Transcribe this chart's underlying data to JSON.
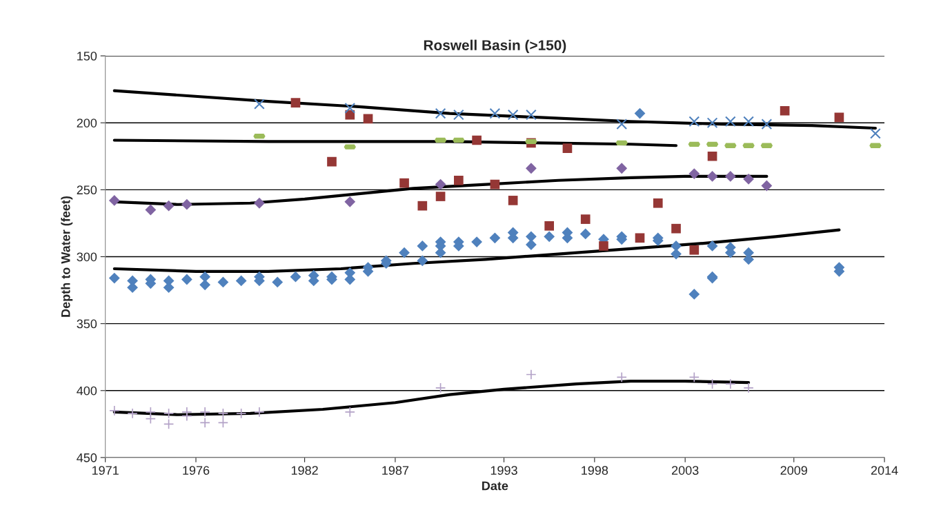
{
  "chart_data": {
    "type": "scatter",
    "title": "Roswell Basin (>150)",
    "xlabel": "Date",
    "ylabel": "Depth to Water (feet)",
    "xlim": [
      1971,
      2014
    ],
    "xticks": [
      1971,
      1976,
      1982,
      1987,
      1993,
      1998,
      2003,
      2009,
      2014
    ],
    "ylim": [
      450,
      150
    ],
    "yticks": [
      150,
      200,
      250,
      300,
      350,
      400,
      450
    ],
    "grid": "y",
    "legend": false,
    "series": [
      {
        "marker": "diamond",
        "color": "#4f81bd",
        "x": [
          1971.5,
          1972.5,
          1972.5,
          1973.5,
          1973.5,
          1974.5,
          1974.5,
          1975.5,
          1976.5,
          1976.5,
          1977.5,
          1978.5,
          1979.5,
          1979.5,
          1980.5,
          1981.5,
          1982.5,
          1982.5,
          1983.5,
          1983.5,
          1984.5,
          1984.5,
          1985.5,
          1985.5,
          1986.5,
          1986.5,
          1987.5,
          1988.5,
          1988.5,
          1989.5,
          1989.5,
          1989.5,
          1990.5,
          1990.5,
          1991.5,
          1992.5,
          1993.5,
          1993.5,
          1994.5,
          1994.5,
          1995.5,
          1996.5,
          1996.5,
          1997.5,
          1998.5,
          1999.5,
          1999.5,
          2000.5,
          2001.5,
          2001.5,
          2002.5,
          2002.5,
          2003.5,
          2004.5,
          2004.5,
          2004.5,
          2005.5,
          2005.5,
          2006.5,
          2006.5,
          2011.5,
          2011.5
        ],
        "values": [
          316,
          318,
          323,
          317,
          320,
          318,
          323,
          317,
          315,
          321,
          319,
          318,
          315,
          318,
          319,
          315,
          314,
          318,
          315,
          317,
          312,
          317,
          308,
          311,
          303,
          305,
          297,
          292,
          303,
          289,
          292,
          297,
          289,
          292,
          289,
          286,
          282,
          286,
          285,
          291,
          285,
          282,
          286,
          283,
          287,
          285,
          287,
          193,
          286,
          288,
          292,
          298,
          328,
          292,
          315,
          316,
          293,
          297,
          297,
          302,
          308,
          311
        ]
      },
      {
        "marker": "square",
        "color": "#953735",
        "x": [
          1981.5,
          1983.5,
          1984.5,
          1985.5,
          1987.5,
          1988.5,
          1989.5,
          1990.5,
          1991.5,
          1992.5,
          1993.5,
          1994.5,
          1995.5,
          1996.5,
          1997.5,
          1998.5,
          2000.5,
          2001.5,
          2002.5,
          2003.5,
          2004.5,
          2008.5,
          2011.5
        ],
        "values": [
          185,
          229,
          194,
          197,
          245,
          262,
          255,
          243,
          213,
          246,
          258,
          215,
          277,
          219,
          272,
          292,
          286,
          260,
          279,
          295,
          225,
          191,
          196
        ]
      },
      {
        "color": "#9bbb59",
        "x": [
          1979.5,
          1984.5,
          1989.5,
          1990.5,
          1994.5,
          1999.5,
          2003.5,
          2004.5,
          2005.5,
          2006.5,
          2007.5,
          2013.5
        ],
        "values": [
          210,
          218,
          213,
          213,
          214,
          215,
          216,
          216,
          217,
          217,
          217,
          217
        ]
      },
      {
        "marker": "diamond",
        "color": "#8064a2",
        "x": [
          1971.5,
          1973.5,
          1974.5,
          1975.5,
          1979.5,
          1984.5,
          1989.5,
          1994.5,
          1999.5,
          2003.5,
          2004.5,
          2005.5,
          2006.5,
          2007.5
        ],
        "values": [
          258,
          265,
          262,
          261,
          260,
          259,
          246,
          234,
          234,
          238,
          240,
          240,
          242,
          247
        ]
      },
      {
        "marker": "cross",
        "color": "#4f81bd",
        "x": [
          1979.5,
          1984.5,
          1989.5,
          1990.5,
          1992.5,
          1993.5,
          1994.5,
          1999.5,
          2003.5,
          2004.5,
          2005.5,
          2006.5,
          2007.5,
          2013.5
        ],
        "values": [
          186,
          189,
          193,
          194,
          193,
          194,
          194,
          201,
          199,
          200,
          199,
          199,
          201,
          208
        ]
      },
      {
        "marker": "plus",
        "color": "#b3a2c7",
        "x": [
          1971.5,
          1972.5,
          1973.5,
          1973.5,
          1974.5,
          1974.5,
          1975.5,
          1975.5,
          1976.5,
          1976.5,
          1977.5,
          1977.5,
          1978.5,
          1979.5,
          1984.5,
          1989.5,
          1994.5,
          1999.5,
          2003.5,
          2004.5,
          2005.5,
          2006.5
        ],
        "values": [
          415,
          417,
          416,
          421,
          417,
          425,
          416,
          419,
          424,
          416,
          424,
          417,
          417,
          416,
          416,
          398,
          388,
          390,
          390,
          395,
          395,
          398
        ]
      },
      {
        "type": "line",
        "marker": "none",
        "color": "#000000",
        "x": [
          1971.5,
          1980,
          1985,
          1990,
          1995,
          2000,
          2005,
          2010,
          2013.5
        ],
        "values": [
          176,
          184,
          188,
          193,
          196,
          199,
          201,
          202,
          204
        ]
      },
      {
        "type": "line",
        "marker": "none",
        "color": "#000000",
        "x": [
          1971.5,
          1980,
          1990,
          1995,
          2000,
          2002.5
        ],
        "values": [
          213,
          214,
          214,
          215,
          216,
          217
        ]
      },
      {
        "type": "line",
        "marker": "none",
        "color": "#000000",
        "x": [
          1971.5,
          1975,
          1979,
          1982,
          1985,
          1988,
          1992,
          1996,
          2000,
          2003,
          2007.5
        ],
        "values": [
          259,
          261,
          260,
          257,
          253,
          249,
          246,
          243,
          241,
          240,
          240
        ]
      },
      {
        "type": "line",
        "marker": "none",
        "color": "#000000",
        "x": [
          1971.5,
          1976,
          1980,
          1984,
          1988,
          1992,
          1996,
          2000,
          2004,
          2008,
          2011.5
        ],
        "values": [
          309,
          311,
          311,
          309,
          305,
          302,
          298,
          294,
          290,
          285,
          280
        ]
      },
      {
        "type": "line",
        "marker": "none",
        "color": "#000000",
        "x": [
          1971.5,
          1975,
          1979,
          1983,
          1987,
          1990,
          1993,
          1997,
          2000,
          2003,
          2006.5
        ],
        "values": [
          416,
          418,
          417,
          414,
          409,
          403,
          399,
          395,
          393,
          393,
          394
        ]
      }
    ]
  }
}
